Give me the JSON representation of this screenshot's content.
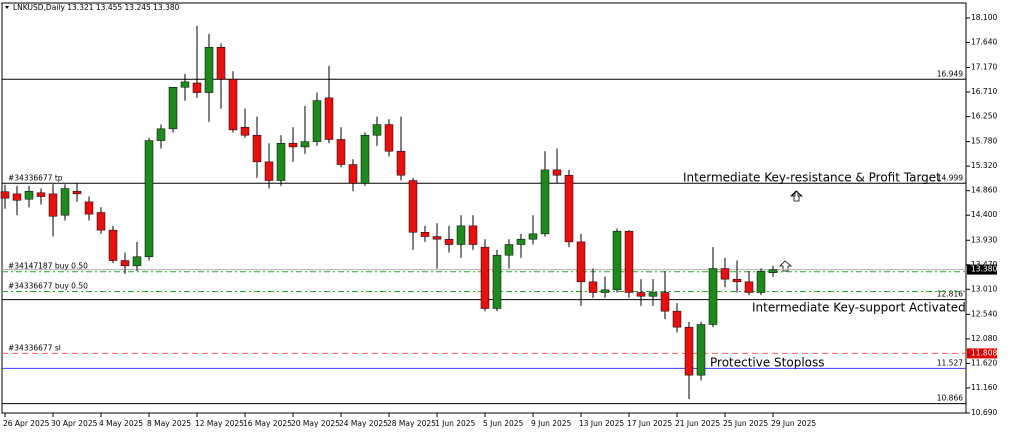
{
  "chart_data": {
    "type": "candlestick",
    "title": "LNKUSD,Daily  13.321 13.455 13.245 13.380",
    "x": [
      "2025-04-26",
      "2025-04-27",
      "2025-04-28",
      "2025-04-29",
      "2025-04-30",
      "2025-05-01",
      "2025-05-02",
      "2025-05-03",
      "2025-05-04",
      "2025-05-05",
      "2025-05-06",
      "2025-05-07",
      "2025-05-08",
      "2025-05-09",
      "2025-05-10",
      "2025-05-11",
      "2025-05-12",
      "2025-05-13",
      "2025-05-14",
      "2025-05-15",
      "2025-05-16",
      "2025-05-17",
      "2025-05-18",
      "2025-05-19",
      "2025-05-20",
      "2025-05-21",
      "2025-05-22",
      "2025-05-23",
      "2025-05-24",
      "2025-05-25",
      "2025-05-26",
      "2025-05-27",
      "2025-05-28",
      "2025-05-29",
      "2025-05-30",
      "2025-05-31",
      "2025-06-01",
      "2025-06-02",
      "2025-06-03",
      "2025-06-04",
      "2025-06-05",
      "2025-06-06",
      "2025-06-07",
      "2025-06-08",
      "2025-06-09",
      "2025-06-10",
      "2025-06-11",
      "2025-06-12",
      "2025-06-13",
      "2025-06-14",
      "2025-06-15",
      "2025-06-16",
      "2025-06-17",
      "2025-06-18",
      "2025-06-19",
      "2025-06-20",
      "2025-06-21",
      "2025-06-22",
      "2025-06-23",
      "2025-06-24",
      "2025-06-25",
      "2025-06-26",
      "2025-06-27",
      "2025-06-28",
      "2025-06-29"
    ],
    "open": [
      14.84,
      14.8,
      14.7,
      14.82,
      14.8,
      14.4,
      14.85,
      14.65,
      14.45,
      14.12,
      13.55,
      13.45,
      13.62,
      15.8,
      16.02,
      16.8,
      16.88,
      16.7,
      17.55,
      16.95,
      16.05,
      15.9,
      15.4,
      15.05,
      15.75,
      15.68,
      15.78,
      16.6,
      15.82,
      15.35,
      15.0,
      15.9,
      16.1,
      15.6,
      15.05,
      14.08,
      14.0,
      13.95,
      13.85,
      14.2,
      13.8,
      12.65,
      13.65,
      13.85,
      13.95,
      14.05,
      15.25,
      15.15,
      13.9,
      13.15,
      12.95,
      13.0,
      14.1,
      12.95,
      12.88,
      12.95,
      12.6,
      12.3,
      11.4,
      12.35,
      13.4,
      13.2,
      13.15,
      12.95,
      13.321
    ],
    "high": [
      14.97,
      14.95,
      14.95,
      14.9,
      14.98,
      14.98,
      15.0,
      14.75,
      14.55,
      14.2,
      13.7,
      13.9,
      15.85,
      16.1,
      16.8,
      17.05,
      17.95,
      17.8,
      17.62,
      17.1,
      16.4,
      16.25,
      15.75,
      15.9,
      16.05,
      16.45,
      16.7,
      17.2,
      16.05,
      15.45,
      15.95,
      16.25,
      16.2,
      16.25,
      15.1,
      14.2,
      14.25,
      14.2,
      14.4,
      14.4,
      13.95,
      13.75,
      13.95,
      14.05,
      14.4,
      15.6,
      15.65,
      15.25,
      14.05,
      13.4,
      13.25,
      14.15,
      14.12,
      13.2,
      13.2,
      13.35,
      12.75,
      12.4,
      12.4,
      13.8,
      13.6,
      13.55,
      13.35,
      13.4,
      13.455
    ],
    "low": [
      14.52,
      14.4,
      14.55,
      14.6,
      14.0,
      14.3,
      14.65,
      14.3,
      14.05,
      13.5,
      13.3,
      13.35,
      13.55,
      15.65,
      15.95,
      16.55,
      16.6,
      16.15,
      16.4,
      15.95,
      15.85,
      15.1,
      14.9,
      14.95,
      15.4,
      15.55,
      15.7,
      15.75,
      15.3,
      14.85,
      14.95,
      15.7,
      15.5,
      15.05,
      13.75,
      13.9,
      13.4,
      13.7,
      13.6,
      13.75,
      12.6,
      12.6,
      13.4,
      13.6,
      13.85,
      14.0,
      15.0,
      13.8,
      12.7,
      12.85,
      12.85,
      12.95,
      12.85,
      12.7,
      12.7,
      12.45,
      12.2,
      10.95,
      11.3,
      12.3,
      13.05,
      12.95,
      12.9,
      12.9,
      13.245
    ],
    "close": [
      14.72,
      14.68,
      14.85,
      14.75,
      14.38,
      14.9,
      14.8,
      14.42,
      14.12,
      13.55,
      13.45,
      13.62,
      15.8,
      16.02,
      16.8,
      16.9,
      16.7,
      17.55,
      16.95,
      16.0,
      15.9,
      15.4,
      15.05,
      15.75,
      15.68,
      15.78,
      16.55,
      15.82,
      15.35,
      15.0,
      15.9,
      16.1,
      15.6,
      15.15,
      14.08,
      14.0,
      13.95,
      13.85,
      14.2,
      13.85,
      12.65,
      13.65,
      13.85,
      13.95,
      14.05,
      15.25,
      15.15,
      13.9,
      13.15,
      12.95,
      13.0,
      14.1,
      12.95,
      12.88,
      12.95,
      12.6,
      12.3,
      11.4,
      12.35,
      13.4,
      13.2,
      13.15,
      12.95,
      13.35,
      13.38
    ],
    "up_color": "#1e8a1e",
    "down_color": "#e8100f",
    "ylim": [
      10.69,
      18.38
    ],
    "yticks": [
      {
        "value": 18.1,
        "label": "18.100"
      },
      {
        "value": 17.64,
        "label": "17.640"
      },
      {
        "value": 17.17,
        "label": "17.170"
      },
      {
        "value": 16.71,
        "label": "16.710"
      },
      {
        "value": 16.25,
        "label": "16.250"
      },
      {
        "value": 15.78,
        "label": "15.780"
      },
      {
        "value": 15.32,
        "label": "15.320"
      },
      {
        "value": 14.86,
        "label": "14.860"
      },
      {
        "value": 14.4,
        "label": "14.400"
      },
      {
        "value": 13.93,
        "label": "13.930"
      },
      {
        "value": 13.47,
        "label": "13.470"
      },
      {
        "value": 13.01,
        "label": "13.010"
      },
      {
        "value": 12.54,
        "label": "12.540"
      },
      {
        "value": 12.08,
        "label": "12.080"
      },
      {
        "value": 11.62,
        "label": "11.620"
      },
      {
        "value": 11.16,
        "label": "11.160"
      },
      {
        "value": 10.69,
        "label": "10.690"
      }
    ],
    "xticks": [
      {
        "value": "2025-04-26",
        "label": "26 Apr 2025"
      },
      {
        "value": "2025-04-30",
        "label": "30 Apr 2025"
      },
      {
        "value": "2025-05-04",
        "label": "4 May 2025"
      },
      {
        "value": "2025-05-08",
        "label": "8 May 2025"
      },
      {
        "value": "2025-05-12",
        "label": "12 May 2025"
      },
      {
        "value": "2025-05-16",
        "label": "16 May 2025"
      },
      {
        "value": "2025-05-20",
        "label": "20 May 2025"
      },
      {
        "value": "2025-05-24",
        "label": "24 May 2025"
      },
      {
        "value": "2025-05-28",
        "label": "28 May 2025"
      },
      {
        "value": "2025-06-01",
        "label": "1 Jun 2025"
      },
      {
        "value": "2025-06-05",
        "label": "5 Jun 2025"
      },
      {
        "value": "2025-06-09",
        "label": "9 Jun 2025"
      },
      {
        "value": "2025-06-13",
        "label": "13 Jun 2025"
      },
      {
        "value": "2025-06-17",
        "label": "17 Jun 2025"
      },
      {
        "value": "2025-06-21",
        "label": "21 Jun 2025"
      },
      {
        "value": "2025-06-25",
        "label": "25 Jun 2025"
      },
      {
        "value": "2025-06-29",
        "label": "29 Jun 2025"
      }
    ],
    "levels": [
      {
        "value": 16.949,
        "color": "#000000",
        "dash": "none"
      },
      {
        "value": 14.999,
        "color": "#000000",
        "dash": "none"
      },
      {
        "value": 12.816,
        "color": "#000000",
        "dash": "none"
      },
      {
        "value": 11.527,
        "color": "#3c3cff",
        "dash": "none"
      },
      {
        "value": 10.866,
        "color": "#000000",
        "dash": "none"
      },
      {
        "value": 11.808,
        "color": "#ff6060",
        "dash": "6 4",
        "label_fill": "#e00000"
      },
      {
        "value": 13.38,
        "value_label": "13.380",
        "color": "#b0b0b0",
        "dash": "none",
        "label_fill": "#000000"
      }
    ],
    "orders": [
      {
        "value": 14.999,
        "text": "#34336677 tp"
      },
      {
        "value": 13.34,
        "text": "#34147187 buy 0.50",
        "color": "#22aa22",
        "dash": "6 3 2 3"
      },
      {
        "value": 12.97,
        "text": "#34336677 buy 0.50",
        "color": "#22aa22",
        "dash": "6 3 2 3"
      },
      {
        "value": 11.808,
        "text": "#34336677 sl"
      }
    ],
    "annotations": [
      {
        "text": "Intermediate Key-resistance & Profit Target"
      },
      {
        "text": "Intermediate Key-support Activated"
      },
      {
        "text": "Protective Stoploss"
      }
    ]
  }
}
